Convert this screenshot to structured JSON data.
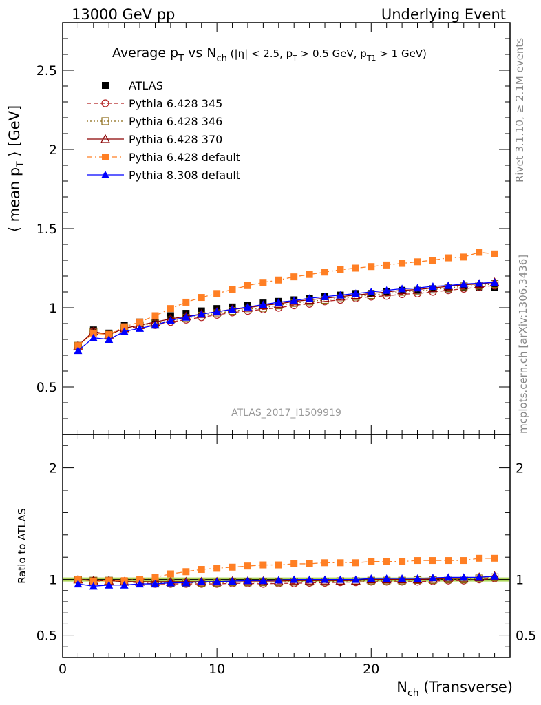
{
  "header": {
    "left": "13000 GeV pp",
    "right": "Underlying Event"
  },
  "side_labels": {
    "rivet": "Rivet 3.1.10, ≥ 2.1M events",
    "mcplots": "mcplots.cern.ch [arXiv:1306.3436]"
  },
  "watermark": "ATLAS_2017_I1509919",
  "colors": {
    "atlas": "#000000",
    "p345": "#b22222",
    "p346": "#8b6914",
    "p370": "#8b0000",
    "p6def": "#ff7f24",
    "p8def": "#0000ff",
    "ref_line": "#9acd32"
  },
  "chart_data": [
    {
      "type": "scatter",
      "panel": "main",
      "title": "Average pT vs Nch (|η| < 2.5, pT > 0.5 GeV, pT1 > 1 GeV)",
      "ylabel": "⟨ mean pT ⟩ [GeV]",
      "xlim": [
        0,
        29
      ],
      "ylim": [
        0.2,
        2.8
      ],
      "yticks": [
        "0.5",
        "1",
        "1.5",
        "2",
        "2.5"
      ],
      "x": [
        1,
        2,
        3,
        4,
        5,
        6,
        7,
        8,
        9,
        10,
        11,
        12,
        13,
        14,
        15,
        16,
        17,
        18,
        19,
        20,
        21,
        22,
        23,
        24,
        25,
        26,
        27,
        28
      ],
      "series": [
        {
          "name": "ATLAS",
          "marker": "square",
          "values": [
            0.76,
            0.86,
            0.84,
            0.89,
            0.91,
            0.93,
            0.95,
            0.965,
            0.98,
            0.995,
            1.005,
            1.015,
            1.03,
            1.04,
            1.05,
            1.06,
            1.07,
            1.08,
            1.09,
            1.09,
            1.1,
            1.11,
            1.11,
            1.12,
            1.12,
            1.13,
            1.13,
            1.13
          ]
        },
        {
          "name": "Pythia 6.428 345",
          "marker": "open-circle",
          "values": [
            0.76,
            0.85,
            0.83,
            0.87,
            0.88,
            0.89,
            0.91,
            0.925,
            0.94,
            0.955,
            0.97,
            0.98,
            0.99,
            1.0,
            1.015,
            1.025,
            1.04,
            1.05,
            1.06,
            1.07,
            1.075,
            1.085,
            1.09,
            1.1,
            1.11,
            1.12,
            1.13,
            1.14
          ]
        },
        {
          "name": "Pythia 6.428 346",
          "marker": "open-square",
          "values": [
            0.76,
            0.85,
            0.83,
            0.87,
            0.89,
            0.9,
            0.92,
            0.935,
            0.95,
            0.965,
            0.98,
            0.99,
            1.0,
            1.015,
            1.03,
            1.04,
            1.05,
            1.06,
            1.07,
            1.08,
            1.09,
            1.1,
            1.105,
            1.115,
            1.125,
            1.135,
            1.14,
            1.15
          ]
        },
        {
          "name": "Pythia 6.428 370",
          "marker": "open-triangle",
          "values": [
            0.76,
            0.85,
            0.83,
            0.87,
            0.89,
            0.91,
            0.93,
            0.945,
            0.96,
            0.975,
            0.99,
            1.0,
            1.015,
            1.025,
            1.04,
            1.05,
            1.06,
            1.07,
            1.08,
            1.09,
            1.1,
            1.11,
            1.115,
            1.125,
            1.135,
            1.145,
            1.15,
            1.16
          ]
        },
        {
          "name": "Pythia 6.428 default",
          "marker": "filled-square",
          "values": [
            0.76,
            0.84,
            0.83,
            0.88,
            0.91,
            0.95,
            0.995,
            1.035,
            1.065,
            1.09,
            1.115,
            1.14,
            1.16,
            1.175,
            1.195,
            1.21,
            1.225,
            1.24,
            1.25,
            1.26,
            1.27,
            1.28,
            1.29,
            1.3,
            1.315,
            1.32,
            1.35,
            1.34
          ]
        },
        {
          "name": "Pythia 8.308 default",
          "marker": "filled-triangle",
          "values": [
            0.73,
            0.81,
            0.8,
            0.85,
            0.87,
            0.89,
            0.92,
            0.94,
            0.96,
            0.975,
            0.99,
            1.005,
            1.02,
            1.035,
            1.045,
            1.06,
            1.07,
            1.08,
            1.09,
            1.1,
            1.11,
            1.12,
            1.125,
            1.135,
            1.14,
            1.15,
            1.155,
            1.16
          ]
        }
      ]
    },
    {
      "type": "line",
      "panel": "ratio",
      "xlabel": "Nch (Transverse)",
      "ylabel": "Ratio to ATLAS",
      "xlim": [
        0,
        29
      ],
      "ylim": [
        0.3,
        2.3
      ],
      "xticks": [
        "0",
        "10",
        "20"
      ],
      "yticks": [
        "0.5",
        "1",
        "2"
      ],
      "x": [
        1,
        2,
        3,
        4,
        5,
        6,
        7,
        8,
        9,
        10,
        11,
        12,
        13,
        14,
        15,
        16,
        17,
        18,
        19,
        20,
        21,
        22,
        23,
        24,
        25,
        26,
        27,
        28
      ],
      "series": [
        {
          "name": "Pythia 6.428 345",
          "values": [
            1.0,
            0.99,
            0.99,
            0.98,
            0.97,
            0.96,
            0.96,
            0.96,
            0.96,
            0.96,
            0.965,
            0.965,
            0.96,
            0.965,
            0.965,
            0.97,
            0.97,
            0.975,
            0.975,
            0.98,
            0.98,
            0.98,
            0.98,
            0.985,
            0.99,
            0.99,
            1.0,
            1.01
          ]
        },
        {
          "name": "Pythia 6.428 346",
          "values": [
            1.0,
            0.99,
            0.99,
            0.98,
            0.98,
            0.97,
            0.97,
            0.97,
            0.97,
            0.97,
            0.975,
            0.975,
            0.975,
            0.975,
            0.98,
            0.98,
            0.98,
            0.985,
            0.985,
            0.99,
            0.99,
            0.99,
            0.995,
            0.995,
            1.0,
            1.0,
            1.01,
            1.02
          ]
        },
        {
          "name": "Pythia 6.428 370",
          "values": [
            1.0,
            0.99,
            0.99,
            0.98,
            0.98,
            0.98,
            0.98,
            0.98,
            0.98,
            0.98,
            0.985,
            0.985,
            0.985,
            0.985,
            0.99,
            0.99,
            0.99,
            0.99,
            0.99,
            1.0,
            1.0,
            1.0,
            1.0,
            1.005,
            1.01,
            1.01,
            1.02,
            1.03
          ]
        },
        {
          "name": "Pythia 6.428 default",
          "values": [
            1.0,
            0.98,
            0.99,
            0.99,
            1.0,
            1.02,
            1.05,
            1.07,
            1.09,
            1.1,
            1.11,
            1.12,
            1.13,
            1.13,
            1.14,
            1.14,
            1.15,
            1.15,
            1.15,
            1.16,
            1.16,
            1.16,
            1.17,
            1.17,
            1.17,
            1.17,
            1.19,
            1.19
          ]
        },
        {
          "name": "Pythia 8.308 default",
          "values": [
            0.96,
            0.94,
            0.95,
            0.95,
            0.96,
            0.96,
            0.97,
            0.97,
            0.98,
            0.98,
            0.985,
            0.99,
            0.99,
            0.995,
            1.0,
            1.0,
            1.0,
            1.0,
            1.0,
            1.01,
            1.01,
            1.01,
            1.01,
            1.015,
            1.02,
            1.02,
            1.02,
            1.03
          ]
        }
      ]
    }
  ]
}
